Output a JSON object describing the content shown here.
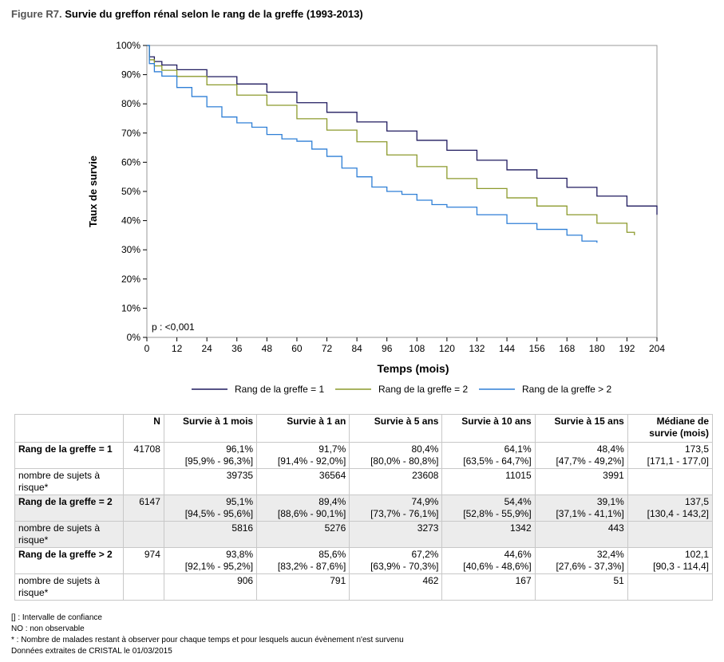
{
  "figure": {
    "label": "Figure R7.",
    "title": "Survie du greffon rénal selon le rang de la greffe (1993-2013)"
  },
  "chart_data": {
    "type": "line",
    "title": "Survie du greffon rénal selon le rang de la greffe (1993-2013)",
    "xlabel": "Temps (mois)",
    "ylabel": "Taux de survie",
    "xlim": [
      0,
      204
    ],
    "ylim": [
      0,
      100
    ],
    "x_ticks": [
      "0",
      "12",
      "24",
      "36",
      "48",
      "60",
      "72",
      "84",
      "96",
      "108",
      "120",
      "132",
      "144",
      "156",
      "168",
      "180",
      "192",
      "204"
    ],
    "y_ticks": [
      "0%",
      "10%",
      "20%",
      "30%",
      "40%",
      "50%",
      "60%",
      "70%",
      "80%",
      "90%",
      "100%"
    ],
    "legend_position": "bottom",
    "annotation": "p : <0,001",
    "series": [
      {
        "name": "Rang de la greffe = 1",
        "color": "#1f1a5e",
        "x": [
          0,
          1,
          3,
          6,
          12,
          24,
          36,
          48,
          60,
          72,
          84,
          96,
          108,
          120,
          132,
          144,
          156,
          168,
          180,
          192,
          204
        ],
        "y": [
          100,
          96.1,
          94.5,
          93.3,
          91.7,
          89.3,
          86.8,
          84.0,
          80.4,
          77.1,
          73.8,
          70.7,
          67.5,
          64.1,
          60.7,
          57.4,
          54.5,
          51.4,
          48.4,
          45.0,
          42.0
        ]
      },
      {
        "name": "Rang de la greffe = 2",
        "color": "#8c9a2c",
        "x": [
          0,
          1,
          3,
          6,
          12,
          24,
          36,
          48,
          60,
          72,
          84,
          96,
          108,
          120,
          132,
          144,
          156,
          168,
          180,
          192,
          195
        ],
        "y": [
          100,
          95.1,
          93.0,
          91.5,
          89.4,
          86.5,
          83.0,
          79.5,
          74.9,
          71.0,
          67.0,
          62.5,
          58.5,
          54.4,
          51.0,
          47.8,
          45.0,
          42.0,
          39.1,
          36.0,
          35.0
        ]
      },
      {
        "name": "Rang de la greffe > 2",
        "color": "#2e7fd6",
        "x": [
          0,
          1,
          3,
          6,
          12,
          18,
          24,
          30,
          36,
          42,
          48,
          54,
          60,
          66,
          72,
          78,
          84,
          90,
          96,
          102,
          108,
          114,
          120,
          132,
          144,
          156,
          168,
          174,
          180
        ],
        "y": [
          100,
          93.8,
          91.0,
          89.5,
          85.6,
          82.5,
          79.0,
          75.5,
          73.5,
          72.0,
          69.5,
          68.0,
          67.2,
          64.5,
          62.0,
          58.0,
          55.0,
          51.5,
          50.0,
          49.0,
          47.0,
          45.5,
          44.6,
          42.0,
          39.0,
          37.0,
          35.0,
          33.0,
          32.4
        ]
      }
    ]
  },
  "table": {
    "headers": [
      "",
      "N",
      "Survie à 1 mois",
      "Survie à 1 an",
      "Survie à 5 ans",
      "Survie à 10 ans",
      "Survie à 15 ans",
      "Médiane de survie (mois)"
    ],
    "rows": [
      {
        "label": "Rang de la greffe = 1",
        "n": "41708",
        "vals": [
          "96,1%",
          "91,7%",
          "80,4%",
          "64,1%",
          "48,4%",
          "173,5"
        ],
        "ci": [
          "[95,9% - 96,3%]",
          "[91,4% - 92,0%]",
          "[80,0% - 80,8%]",
          "[63,5% - 64,7%]",
          "[47,7% - 49,2%]",
          "[171,1 - 177,0]"
        ],
        "risk_label": "nombre de sujets à risque*",
        "risk": [
          "39735",
          "36564",
          "23608",
          "11015",
          "3991",
          ""
        ]
      },
      {
        "label": "Rang de la greffe = 2",
        "n": "6147",
        "vals": [
          "95,1%",
          "89,4%",
          "74,9%",
          "54,4%",
          "39,1%",
          "137,5"
        ],
        "ci": [
          "[94,5% - 95,6%]",
          "[88,6% - 90,1%]",
          "[73,7% - 76,1%]",
          "[52,8% - 55,9%]",
          "[37,1% - 41,1%]",
          "[130,4 - 143,2]"
        ],
        "risk_label": "nombre de sujets à risque*",
        "risk": [
          "5816",
          "5276",
          "3273",
          "1342",
          "443",
          ""
        ]
      },
      {
        "label": "Rang de la greffe > 2",
        "n": "974",
        "vals": [
          "93,8%",
          "85,6%",
          "67,2%",
          "44,6%",
          "32,4%",
          "102,1"
        ],
        "ci": [
          "[92,1% - 95,2%]",
          "[83,2% - 87,6%]",
          "[63,9% - 70,3%]",
          "[40,6% - 48,6%]",
          "[27,6% - 37,3%]",
          "[90,3 - 114,4]"
        ],
        "risk_label": "nombre de sujets à risque*",
        "risk": [
          "906",
          "791",
          "462",
          "167",
          "51",
          ""
        ]
      }
    ]
  },
  "notes": [
    "[] : Intervalle de confiance",
    "NO : non observable",
    "* : Nombre de malades restant à observer pour chaque temps et pour lesquels aucun évènement n'est survenu",
    "Données extraites de CRISTAL le 01/03/2015"
  ]
}
